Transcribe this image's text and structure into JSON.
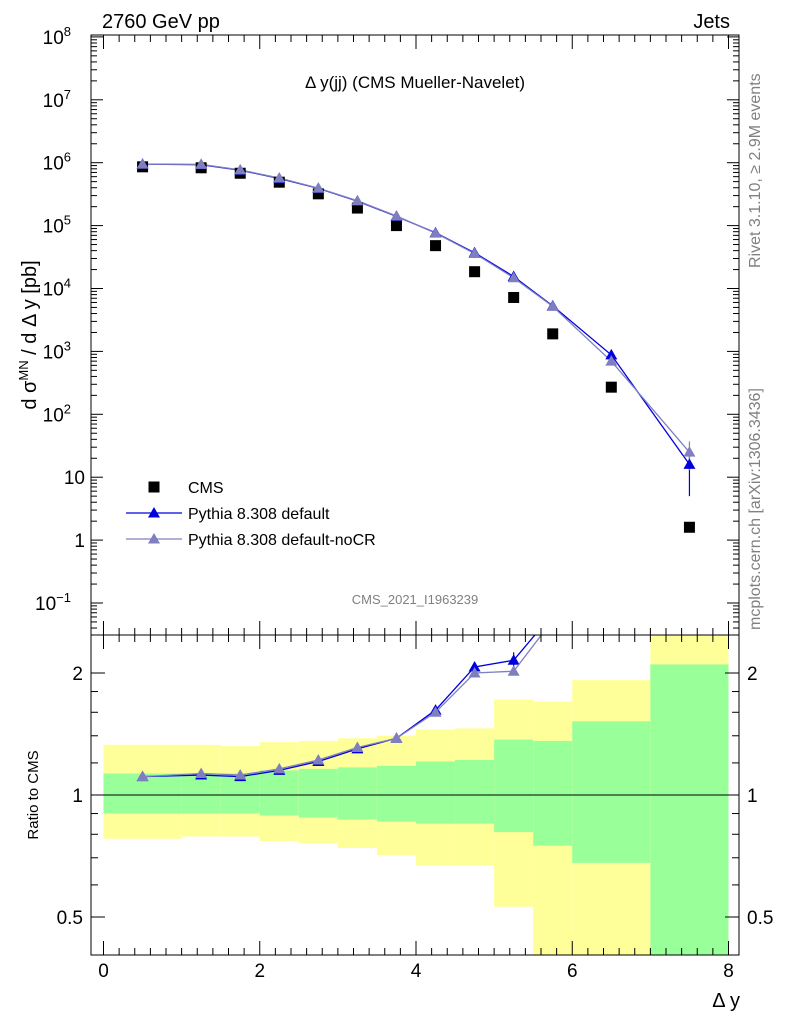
{
  "header": {
    "left": "2760 GeV pp",
    "right": "Jets",
    "side_top": "Rivet 3.1.10, ≥ 2.9M events",
    "side_bottom": "mcplots.cern.ch [arXiv:1306.3436]"
  },
  "colors": {
    "data": "#000000",
    "default": "#0000dd",
    "nocr": "#7f7fbf",
    "band_inner": "#99ff99",
    "band_outer": "#ffff99"
  },
  "chart_data": [
    {
      "type": "scatter",
      "title": "Δ y(jj) (CMS Mueller-Navelet)",
      "watermark": "CMS_2021_I1963239",
      "ylabel": "d σ^MN / d Δ y [pb]",
      "ylim": [
        0.03,
        100000000
      ],
      "yscale": "log",
      "ytick_labels": [
        "10⁻¹",
        "1",
        "10",
        "10²",
        "10³",
        "10⁴",
        "10⁵",
        "10⁶",
        "10⁷",
        "10⁸"
      ],
      "legend": [
        "CMS",
        "Pythia 8.308 default",
        "Pythia 8.308 default-noCR"
      ],
      "legend_position": "bottom-left",
      "series": [
        {
          "name": "CMS",
          "x": [
            0.5,
            1.25,
            1.75,
            2.25,
            2.75,
            3.25,
            3.75,
            4.25,
            4.75,
            5.25,
            5.75,
            6.5,
            7.5
          ],
          "y": [
            860000,
            830000,
            680000,
            490000,
            320000,
            190000,
            100000,
            48000,
            18500,
            7200,
            1900,
            270,
            1.6
          ]
        },
        {
          "name": "Pythia 8.308 default",
          "x": [
            0.5,
            1.25,
            1.75,
            2.25,
            2.75,
            3.25,
            3.75,
            4.25,
            4.75,
            5.25,
            5.75,
            6.5,
            7.5
          ],
          "y": [
            950000,
            930000,
            760000,
            560000,
            390000,
            245000,
            140000,
            77000,
            37000,
            15500,
            5300,
            880,
            16
          ],
          "yerr": [
            0,
            0,
            0,
            0,
            0,
            0,
            0,
            0,
            0,
            0,
            0,
            60,
            11
          ]
        },
        {
          "name": "Pythia 8.308 default-noCR",
          "x": [
            0.5,
            1.25,
            1.75,
            2.25,
            2.75,
            3.25,
            3.75,
            4.25,
            4.75,
            5.25,
            5.75,
            6.5,
            7.5
          ],
          "y": [
            950000,
            940000,
            770000,
            570000,
            395000,
            248000,
            142000,
            76000,
            36000,
            14800,
            5200,
            700,
            25
          ],
          "yerr": [
            0,
            0,
            0,
            0,
            0,
            0,
            0,
            0,
            0,
            0,
            0,
            50,
            12
          ]
        }
      ]
    },
    {
      "type": "line",
      "ylabel": "Ratio to CMS",
      "xlabel": "Δ y",
      "xlim": [
        -0.2,
        8.1
      ],
      "ylim": [
        0.36,
        2.25
      ],
      "yscale": "log",
      "xticks": [
        "0",
        "2",
        "4",
        "6",
        "8"
      ],
      "yticks": [
        "0.5",
        "1",
        "2"
      ],
      "bands": {
        "edges": [
          0,
          1,
          1.5,
          2,
          2.5,
          3,
          3.5,
          4,
          4.5,
          5,
          5.5,
          6,
          7,
          8
        ],
        "inner_lo": [
          0.9,
          0.9,
          0.9,
          0.89,
          0.88,
          0.87,
          0.86,
          0.85,
          0.85,
          0.81,
          0.75,
          0.68,
          0.37
        ],
        "inner_hi": [
          1.13,
          1.13,
          1.13,
          1.15,
          1.16,
          1.17,
          1.18,
          1.21,
          1.22,
          1.37,
          1.36,
          1.52,
          2.1
        ],
        "outer_lo": [
          0.78,
          0.79,
          0.79,
          0.77,
          0.76,
          0.74,
          0.71,
          0.67,
          0.67,
          0.53,
          0.37,
          0.33,
          0.33
        ],
        "outer_hi": [
          1.33,
          1.33,
          1.32,
          1.35,
          1.36,
          1.38,
          1.4,
          1.45,
          1.46,
          1.72,
          1.7,
          1.92,
          2.5
        ]
      },
      "series": [
        {
          "name": "Pythia 8.308 default",
          "x": [
            0.5,
            1.25,
            1.75,
            2.25,
            2.75,
            3.25,
            3.75,
            4.25,
            4.75,
            5.25,
            5.75
          ],
          "y": [
            1.11,
            1.12,
            1.11,
            1.15,
            1.21,
            1.3,
            1.38,
            1.62,
            2.07,
            2.15,
            2.8
          ]
        },
        {
          "name": "Pythia 8.308 default-noCR",
          "x": [
            0.5,
            1.25,
            1.75,
            2.25,
            2.75,
            3.25,
            3.75,
            4.25,
            4.75,
            5.25,
            5.75
          ],
          "y": [
            1.11,
            1.13,
            1.12,
            1.16,
            1.22,
            1.31,
            1.38,
            1.6,
            2.0,
            2.02,
            2.7
          ]
        }
      ]
    }
  ]
}
